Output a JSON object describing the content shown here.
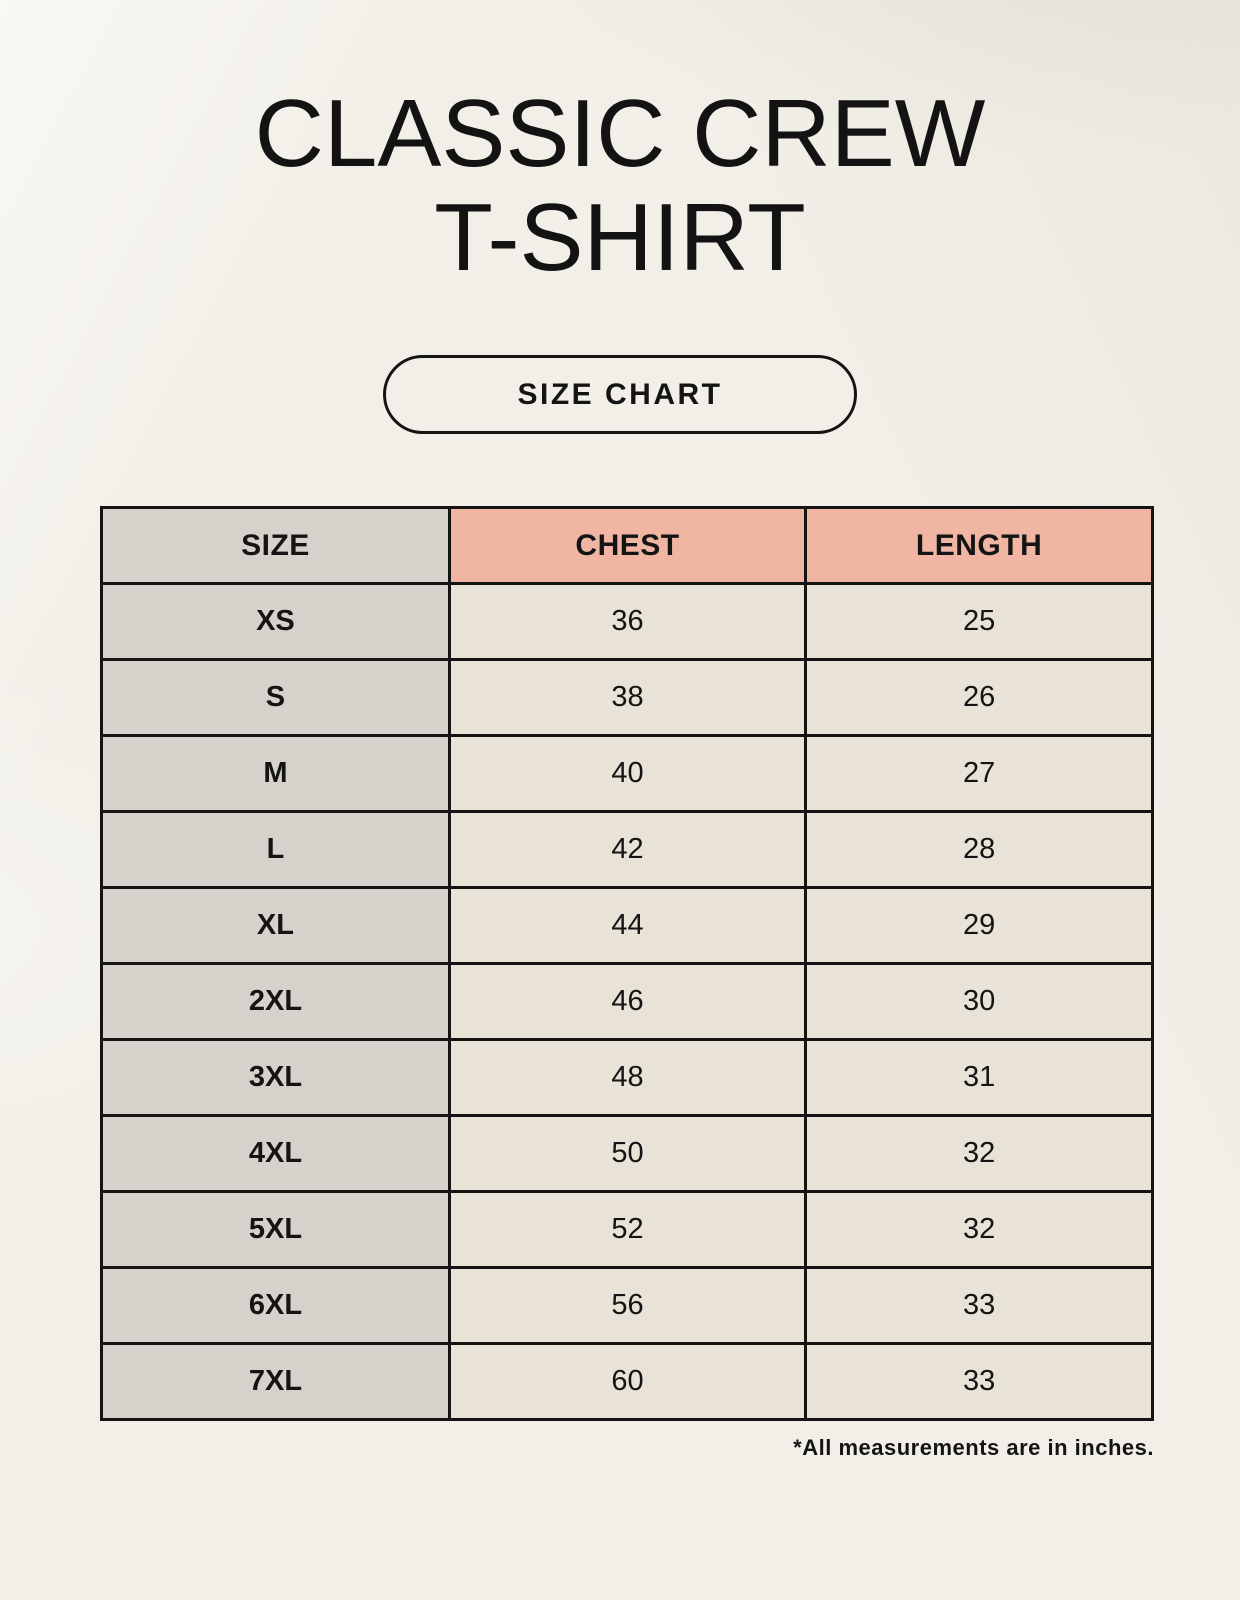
{
  "title": {
    "line1": "CLASSIC CREW",
    "line2": "T-SHIRT"
  },
  "size_chart_button": {
    "label": "SIZE CHART"
  },
  "table": {
    "headers": [
      "SIZE",
      "CHEST",
      "LENGTH"
    ],
    "rows": [
      {
        "size": "XS",
        "chest": "36",
        "length": "25"
      },
      {
        "size": "S",
        "chest": "38",
        "length": "26"
      },
      {
        "size": "M",
        "chest": "40",
        "length": "27"
      },
      {
        "size": "L",
        "chest": "42",
        "length": "28"
      },
      {
        "size": "XL",
        "chest": "44",
        "length": "29"
      },
      {
        "size": "2XL",
        "chest": "46",
        "length": "30"
      },
      {
        "size": "3XL",
        "chest": "48",
        "length": "31"
      },
      {
        "size": "4XL",
        "chest": "50",
        "length": "32"
      },
      {
        "size": "5XL",
        "chest": "52",
        "length": "32"
      },
      {
        "size": "6XL",
        "chest": "56",
        "length": "33"
      },
      {
        "size": "7XL",
        "chest": "60",
        "length": "33"
      }
    ]
  },
  "footnote": "*All measurements are in inches.",
  "colors": {
    "background": "#f2efe8",
    "header_accent": "#f0b6a3",
    "size_column": "#d7d1cb",
    "data_cell": "#e9e2d6",
    "border": "#141414",
    "text": "#141414"
  }
}
